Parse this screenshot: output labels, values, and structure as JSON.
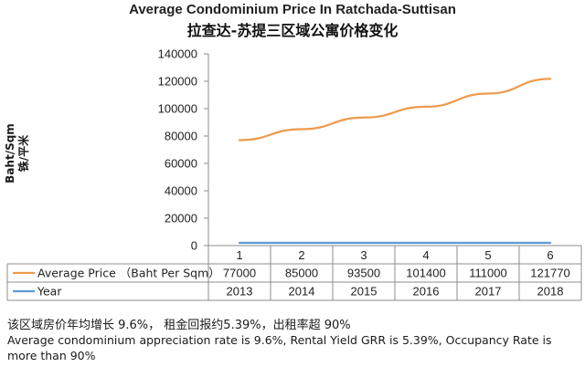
{
  "chart_data": {
    "type": "line",
    "title": "Average Condominium Price In Ratchada-Suttisan",
    "subtitle": "拉查达-苏提三区域公寓价格变化",
    "ylabel_line1": "Baht/Sqm",
    "ylabel_line2": "铢/平米",
    "ylim": [
      0,
      140000
    ],
    "yticks": [
      "0",
      "20000",
      "40000",
      "60000",
      "80000",
      "100000",
      "120000",
      "140000"
    ],
    "categories": [
      "1",
      "2",
      "3",
      "4",
      "5",
      "6"
    ],
    "grid": false,
    "legend": "table-below",
    "series": [
      {
        "name": "Average Price （Baht Per Sqm）",
        "values": [
          77000,
          85000,
          93500,
          101400,
          111000,
          121770
        ],
        "labels": [
          "77000",
          "85000",
          "93500",
          "101400",
          "111000",
          "121770"
        ],
        "color": "#ED9A4C"
      },
      {
        "name": "Year",
        "values": [
          2013,
          2014,
          2015,
          2016,
          2017,
          2018
        ],
        "labels": [
          "2013",
          "2014",
          "2015",
          "2016",
          "2017",
          "2018"
        ],
        "color": "#5B9BD5"
      }
    ]
  },
  "footer": {
    "line1": "该区域房价年均增长 9.6%， 租金回报约5.39%，出租率超 90%",
    "line2": "Average condominium appreciation rate is 9.6%, Rental Yield GRR is 5.39%, Occupancy Rate is more than 90%"
  }
}
